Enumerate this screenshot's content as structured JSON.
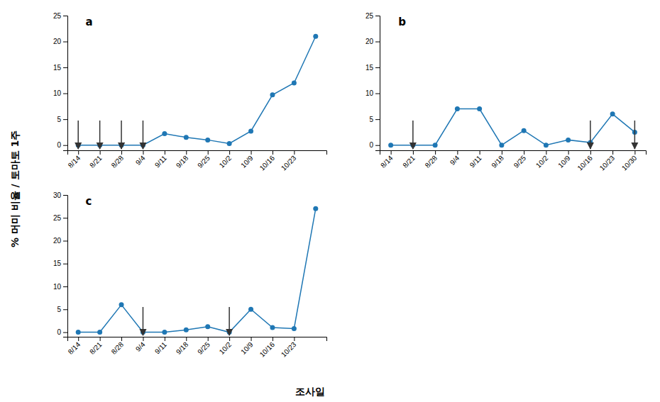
{
  "chart_data": [
    {
      "type": "line",
      "title": "a",
      "categories": [
        "8/14",
        "8/21",
        "8/28",
        "9/4",
        "9/11",
        "9/18",
        "9/25",
        "10/2",
        "10/9",
        "10/16",
        "10/23",
        null
      ],
      "series": [
        {
          "marker": "circle",
          "values": [
            0,
            0,
            0,
            0,
            2.2,
            1.5,
            1.0,
            0.3,
            2.7,
            9.7,
            12.0,
            21.0
          ]
        }
      ],
      "ylim": [
        -1,
        25
      ],
      "yticks": [
        0,
        5,
        10,
        15,
        20,
        25
      ],
      "grid": false,
      "annotations": [
        {
          "type": "arrow",
          "x": "8/14"
        },
        {
          "type": "arrow",
          "x": "8/21"
        },
        {
          "type": "arrow",
          "x": "8/28"
        },
        {
          "type": "arrow",
          "x": "9/4"
        }
      ]
    },
    {
      "type": "line",
      "title": "b",
      "categories": [
        "8/14",
        "8/21",
        "8/28",
        "9/4",
        "9/11",
        "9/18",
        "9/25",
        "10/2",
        "10/9",
        "10/16",
        "10/23",
        "10/30"
      ],
      "series": [
        {
          "marker": "circle",
          "values": [
            0,
            0,
            0,
            7.0,
            7.0,
            0,
            2.8,
            0,
            1.0,
            0.5,
            6.0,
            2.5
          ]
        }
      ],
      "ylim": [
        -1,
        25
      ],
      "yticks": [
        0,
        5,
        10,
        15,
        20,
        25
      ],
      "grid": false,
      "annotations": [
        {
          "type": "arrow",
          "x": "8/21"
        },
        {
          "type": "arrow",
          "x": "10/16"
        },
        {
          "type": "arrow",
          "x": "10/30"
        }
      ]
    },
    {
      "type": "line",
      "title": "c",
      "categories": [
        "8/14",
        "8/21",
        "8/28",
        "9/4",
        "9/11",
        "9/18",
        "9/25",
        "10/2",
        "10/9",
        "10/16",
        "10/23",
        null
      ],
      "series": [
        {
          "marker": "circle",
          "values": [
            0,
            0,
            6.0,
            0,
            0,
            0.5,
            1.2,
            0,
            5.0,
            1.0,
            0.8,
            27.0
          ]
        }
      ],
      "ylim": [
        -1,
        30
      ],
      "yticks": [
        0,
        5,
        10,
        15,
        20,
        25,
        30
      ],
      "grid": false,
      "annotations": [
        {
          "type": "arrow",
          "x": "9/4"
        },
        {
          "type": "arrow",
          "x": "10/2"
        }
      ]
    }
  ],
  "ylabel": "% 머미 비율 / 토마토 1주",
  "xlabel": "조사일"
}
